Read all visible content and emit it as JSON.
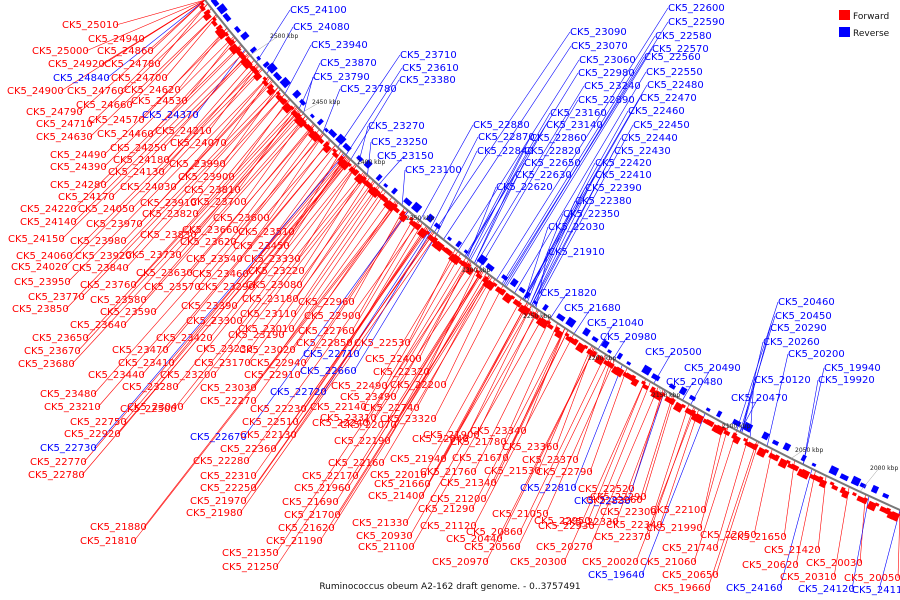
{
  "caption": "Ruminococcus obeum A2-162 draft genome. - 0..3757491",
  "legend": [
    {
      "label": "Forward",
      "color": "#ff0000"
    },
    {
      "label": "Reverse",
      "color": "#0000ff"
    }
  ],
  "ticks": [
    {
      "label": "2500 kbp"
    },
    {
      "label": "2450 kbp"
    },
    {
      "label": "2400 kbp"
    },
    {
      "label": "2350 kbp"
    },
    {
      "label": "2300 kbp"
    },
    {
      "label": "2250 kbp"
    },
    {
      "label": "2200 kbp"
    },
    {
      "label": "2150 kbp"
    },
    {
      "label": "2100 kbp"
    },
    {
      "label": "2050 kbp"
    },
    {
      "label": "2000 kbp"
    }
  ],
  "labels": [
    {
      "text": "CK5_25010",
      "s": "f"
    },
    {
      "text": "CK5_24940",
      "s": "f"
    },
    {
      "text": "CK5_25000",
      "s": "f"
    },
    {
      "text": "CK5_24860",
      "s": "f"
    },
    {
      "text": "CK5_24920",
      "s": "f"
    },
    {
      "text": "CK5_24780",
      "s": "f"
    },
    {
      "text": "CK5_24840",
      "s": "r"
    },
    {
      "text": "CK5_24700",
      "s": "f"
    },
    {
      "text": "CK5_24900",
      "s": "f"
    },
    {
      "text": "CK5_24760",
      "s": "f"
    },
    {
      "text": "CK5_24620",
      "s": "f"
    },
    {
      "text": "CK5_24660",
      "s": "f"
    },
    {
      "text": "CK5_24530",
      "s": "f"
    },
    {
      "text": "CK5_24790",
      "s": "f"
    },
    {
      "text": "CK5_24370",
      "s": "r"
    },
    {
      "text": "CK5_24710",
      "s": "f"
    },
    {
      "text": "CK5_24570",
      "s": "f"
    },
    {
      "text": "CK5_24630",
      "s": "f"
    },
    {
      "text": "CK5_24460",
      "s": "f"
    },
    {
      "text": "CK5_24210",
      "s": "f"
    },
    {
      "text": "CK5_24070",
      "s": "f"
    },
    {
      "text": "CK5_24250",
      "s": "f"
    },
    {
      "text": "CK5_24490",
      "s": "f"
    },
    {
      "text": "CK5_24180",
      "s": "f"
    },
    {
      "text": "CK5_24390",
      "s": "f"
    },
    {
      "text": "CK5_24130",
      "s": "f"
    },
    {
      "text": "CK5_23990",
      "s": "f"
    },
    {
      "text": "CK5_23900",
      "s": "f"
    },
    {
      "text": "CK5_24280",
      "s": "f"
    },
    {
      "text": "CK5_24030",
      "s": "f"
    },
    {
      "text": "CK5_23810",
      "s": "f"
    },
    {
      "text": "CK5_24170",
      "s": "f"
    },
    {
      "text": "CK5_23700",
      "s": "f"
    },
    {
      "text": "CK5_24220",
      "s": "f"
    },
    {
      "text": "CK5_24050",
      "s": "f"
    },
    {
      "text": "CK5_23910",
      "s": "f"
    },
    {
      "text": "CK5_23820",
      "s": "f"
    },
    {
      "text": "CK5_24140",
      "s": "f"
    },
    {
      "text": "CK5_23970",
      "s": "f"
    },
    {
      "text": "CK5_23600",
      "s": "f"
    },
    {
      "text": "CK5_23830",
      "s": "f"
    },
    {
      "text": "CK5_23660",
      "s": "f"
    },
    {
      "text": "CK5_23510",
      "s": "f"
    },
    {
      "text": "CK5_24150",
      "s": "f"
    },
    {
      "text": "CK5_23980",
      "s": "f"
    },
    {
      "text": "CK5_23620",
      "s": "f"
    },
    {
      "text": "CK5_23450",
      "s": "f"
    },
    {
      "text": "CK5_24060",
      "s": "f"
    },
    {
      "text": "CK5_23920",
      "s": "f"
    },
    {
      "text": "CK5_23730",
      "s": "f"
    },
    {
      "text": "CK5_23540",
      "s": "f"
    },
    {
      "text": "CK5_23330",
      "s": "f"
    },
    {
      "text": "CK5_24020",
      "s": "f"
    },
    {
      "text": "CK5_23840",
      "s": "f"
    },
    {
      "text": "CK5_23460",
      "s": "f"
    },
    {
      "text": "CK5_23220",
      "s": "f"
    },
    {
      "text": "CK5_23630",
      "s": "f"
    },
    {
      "text": "CK5_23950",
      "s": "f"
    },
    {
      "text": "CK5_23760",
      "s": "f"
    },
    {
      "text": "CK5_23570",
      "s": "f"
    },
    {
      "text": "CK5_23290",
      "s": "f"
    },
    {
      "text": "CK5_23080",
      "s": "f"
    },
    {
      "text": "CK5_23770",
      "s": "f"
    },
    {
      "text": "CK5_23580",
      "s": "f"
    },
    {
      "text": "CK5_23180",
      "s": "f"
    },
    {
      "text": "CK5_22960",
      "s": "f"
    },
    {
      "text": "CK5_23850",
      "s": "f"
    },
    {
      "text": "CK5_23590",
      "s": "f"
    },
    {
      "text": "CK5_23390",
      "s": "f"
    },
    {
      "text": "CK5_23110",
      "s": "f"
    },
    {
      "text": "CK5_22900",
      "s": "f"
    },
    {
      "text": "CK5_23300",
      "s": "f"
    },
    {
      "text": "CK5_23640",
      "s": "f"
    },
    {
      "text": "CK5_23010",
      "s": "f"
    },
    {
      "text": "CK5_22760",
      "s": "f"
    },
    {
      "text": "CK5_23650",
      "s": "f"
    },
    {
      "text": "CK5_23420",
      "s": "f"
    },
    {
      "text": "CK5_23190",
      "s": "f"
    },
    {
      "text": "CK5_22850",
      "s": "f"
    },
    {
      "text": "CK5_22530",
      "s": "f"
    },
    {
      "text": "CK5_23470",
      "s": "f"
    },
    {
      "text": "CK5_23230",
      "s": "f"
    },
    {
      "text": "CK5_23020",
      "s": "f"
    },
    {
      "text": "CK5_23670",
      "s": "f"
    },
    {
      "text": "CK5_22710",
      "s": "r"
    },
    {
      "text": "CK5_22400",
      "s": "f"
    },
    {
      "text": "CK5_23680",
      "s": "f"
    },
    {
      "text": "CK5_23410",
      "s": "f"
    },
    {
      "text": "CK5_23170",
      "s": "f"
    },
    {
      "text": "CK5_22940",
      "s": "f"
    },
    {
      "text": "CK5_22660",
      "s": "r"
    },
    {
      "text": "CK5_22320",
      "s": "f"
    },
    {
      "text": "CK5_23440",
      "s": "f"
    },
    {
      "text": "CK5_23200",
      "s": "f"
    },
    {
      "text": "CK5_22910",
      "s": "f"
    },
    {
      "text": "CK5_22490",
      "s": "f"
    },
    {
      "text": "CK5_22200",
      "s": "f"
    },
    {
      "text": "CK5_23280",
      "s": "f"
    },
    {
      "text": "CK5_23030",
      "s": "f"
    },
    {
      "text": "CK5_22720",
      "s": "r"
    },
    {
      "text": "CK5_23480",
      "s": "f"
    },
    {
      "text": "CK5_23040",
      "s": "f"
    },
    {
      "text": "CK5_22270",
      "s": "f"
    },
    {
      "text": "CK5_23490",
      "s": "f"
    },
    {
      "text": "CK5_23210",
      "s": "f"
    },
    {
      "text": "CK5_22500",
      "s": "f"
    },
    {
      "text": "CK5_22140",
      "s": "f"
    },
    {
      "text": "CK5_22740",
      "s": "f"
    },
    {
      "text": "CK5_22230",
      "s": "f"
    },
    {
      "text": "CK5_23310",
      "s": "f"
    },
    {
      "text": "CK5_22750",
      "s": "f"
    },
    {
      "text": "CK5_22510",
      "s": "f"
    },
    {
      "text": "CK5_22240",
      "s": "f"
    },
    {
      "text": "CK5_22070",
      "s": "f"
    },
    {
      "text": "CK5_23320",
      "s": "f"
    },
    {
      "text": "CK5_22920",
      "s": "f"
    },
    {
      "text": "CK5_22670",
      "s": "r"
    },
    {
      "text": "CK5_22130",
      "s": "f"
    },
    {
      "text": "CK5_21900",
      "s": "f"
    },
    {
      "text": "CK5_23340",
      "s": "f"
    },
    {
      "text": "CK5_22730",
      "s": "r"
    },
    {
      "text": "CK5_22360",
      "s": "f"
    },
    {
      "text": "CK5_22190",
      "s": "f"
    },
    {
      "text": "CK5_22040",
      "s": "f"
    },
    {
      "text": "CK5_21780",
      "s": "f"
    },
    {
      "text": "CK5_23360",
      "s": "f"
    },
    {
      "text": "CK5_22770",
      "s": "f"
    },
    {
      "text": "CK5_22280",
      "s": "f"
    },
    {
      "text": "CK5_22160",
      "s": "f"
    },
    {
      "text": "CK5_21940",
      "s": "f"
    },
    {
      "text": "CK5_21670",
      "s": "f"
    },
    {
      "text": "CK5_23370",
      "s": "f"
    },
    {
      "text": "CK5_22780",
      "s": "f"
    },
    {
      "text": "CK5_22310",
      "s": "f"
    },
    {
      "text": "CK5_22170",
      "s": "f"
    },
    {
      "text": "CK5_22010",
      "s": "f"
    },
    {
      "text": "CK5_21760",
      "s": "f"
    },
    {
      "text": "CK5_21530",
      "s": "f"
    },
    {
      "text": "CK5_22790",
      "s": "f"
    },
    {
      "text": "CK5_22520",
      "s": "f"
    },
    {
      "text": "CK5_22250",
      "s": "f"
    },
    {
      "text": "CK5_21960",
      "s": "f"
    },
    {
      "text": "CK5_21660",
      "s": "f"
    },
    {
      "text": "CK5_21340",
      "s": "f"
    },
    {
      "text": "CK5_22810",
      "s": "r"
    },
    {
      "text": "CK5_22260",
      "s": "f"
    },
    {
      "text": "CK5_21970",
      "s": "f"
    },
    {
      "text": "CK5_21690",
      "s": "f"
    },
    {
      "text": "CK5_21400",
      "s": "f"
    },
    {
      "text": "CK5_21200",
      "s": "f"
    },
    {
      "text": "CK5_22830",
      "s": "r"
    },
    {
      "text": "CK5_22290",
      "s": "f"
    },
    {
      "text": "CK5_21980",
      "s": "f"
    },
    {
      "text": "CK5_21700",
      "s": "f"
    },
    {
      "text": "CK5_21290",
      "s": "f"
    },
    {
      "text": "CK5_21050",
      "s": "f"
    },
    {
      "text": "CK5_22930",
      "s": "f"
    },
    {
      "text": "CK5_22300",
      "s": "f"
    },
    {
      "text": "CK5_22100",
      "s": "f"
    },
    {
      "text": "CK5_21880",
      "s": "f"
    },
    {
      "text": "CK5_21620",
      "s": "f"
    },
    {
      "text": "CK5_21330",
      "s": "f"
    },
    {
      "text": "CK5_21120",
      "s": "f"
    },
    {
      "text": "CK5_20860",
      "s": "f"
    },
    {
      "text": "CK5_22950",
      "s": "f"
    },
    {
      "text": "CK5_22330",
      "s": "f"
    },
    {
      "text": "CK5_22050",
      "s": "f"
    },
    {
      "text": "CK5_21810",
      "s": "f"
    },
    {
      "text": "CK5_21190",
      "s": "f"
    },
    {
      "text": "CK5_20930",
      "s": "f"
    },
    {
      "text": "CK5_20440",
      "s": "f"
    },
    {
      "text": "CK5_22340",
      "s": "f"
    },
    {
      "text": "CK5_21990",
      "s": "f"
    },
    {
      "text": "CK5_21650",
      "s": "f"
    },
    {
      "text": "CK5_21350",
      "s": "f"
    },
    {
      "text": "CK5_21100",
      "s": "f"
    },
    {
      "text": "CK5_20560",
      "s": "f"
    },
    {
      "text": "CK5_20270",
      "s": "f"
    },
    {
      "text": "CK5_22370",
      "s": "f"
    },
    {
      "text": "CK5_21740",
      "s": "f"
    },
    {
      "text": "CK5_21420",
      "s": "f"
    },
    {
      "text": "CK5_21250",
      "s": "f"
    },
    {
      "text": "CK5_20970",
      "s": "f"
    },
    {
      "text": "CK5_20300",
      "s": "f"
    },
    {
      "text": "CK5_20020",
      "s": "f"
    },
    {
      "text": "CK5_21060",
      "s": "f"
    },
    {
      "text": "CK5_20620",
      "s": "f"
    },
    {
      "text": "CK5_20030",
      "s": "f"
    },
    {
      "text": "CK5_19640",
      "s": "r"
    },
    {
      "text": "CK5_20650",
      "s": "f"
    },
    {
      "text": "CK5_20310",
      "s": "f"
    },
    {
      "text": "CK5_20050",
      "s": "f"
    },
    {
      "text": "CK5_19660",
      "s": "f"
    },
    {
      "text": "CK5_24160",
      "s": "r"
    },
    {
      "text": "CK5_24120",
      "s": "r"
    },
    {
      "text": "CK5_24110",
      "s": "r"
    },
    {
      "text": "CK5_24100",
      "s": "r"
    },
    {
      "text": "CK5_24080",
      "s": "r"
    },
    {
      "text": "CK5_23940",
      "s": "r"
    },
    {
      "text": "CK5_23870",
      "s": "r"
    },
    {
      "text": "CK5_23790",
      "s": "r"
    },
    {
      "text": "CK5_23780",
      "s": "r"
    },
    {
      "text": "CK5_23710",
      "s": "r"
    },
    {
      "text": "CK5_23610",
      "s": "r"
    },
    {
      "text": "CK5_23380",
      "s": "r"
    },
    {
      "text": "CK5_23270",
      "s": "r"
    },
    {
      "text": "CK5_23250",
      "s": "r"
    },
    {
      "text": "CK5_23150",
      "s": "r"
    },
    {
      "text": "CK5_23100",
      "s": "r"
    },
    {
      "text": "CK5_23090",
      "s": "r"
    },
    {
      "text": "CK5_23070",
      "s": "r"
    },
    {
      "text": "CK5_23060",
      "s": "r"
    },
    {
      "text": "CK5_22980",
      "s": "r"
    },
    {
      "text": "CK5_23240",
      "s": "r"
    },
    {
      "text": "CK5_22890",
      "s": "r"
    },
    {
      "text": "CK5_23160",
      "s": "r"
    },
    {
      "text": "CK5_22880",
      "s": "r"
    },
    {
      "text": "CK5_23140",
      "s": "r"
    },
    {
      "text": "CK5_22870",
      "s": "r"
    },
    {
      "text": "CK5_22860",
      "s": "r"
    },
    {
      "text": "CK5_22840",
      "s": "r"
    },
    {
      "text": "CK5_22820",
      "s": "r"
    },
    {
      "text": "CK5_22650",
      "s": "r"
    },
    {
      "text": "CK5_22630",
      "s": "r"
    },
    {
      "text": "CK5_22620",
      "s": "r"
    },
    {
      "text": "CK5_22600",
      "s": "r"
    },
    {
      "text": "CK5_22590",
      "s": "r"
    },
    {
      "text": "CK5_22580",
      "s": "r"
    },
    {
      "text": "CK5_22570",
      "s": "r"
    },
    {
      "text": "CK5_22560",
      "s": "r"
    },
    {
      "text": "CK5_22550",
      "s": "r"
    },
    {
      "text": "CK5_22480",
      "s": "r"
    },
    {
      "text": "CK5_22470",
      "s": "r"
    },
    {
      "text": "CK5_22460",
      "s": "r"
    },
    {
      "text": "CK5_22450",
      "s": "r"
    },
    {
      "text": "CK5_22440",
      "s": "r"
    },
    {
      "text": "CK5_22430",
      "s": "r"
    },
    {
      "text": "CK5_22420",
      "s": "r"
    },
    {
      "text": "CK5_22410",
      "s": "r"
    },
    {
      "text": "CK5_22390",
      "s": "r"
    },
    {
      "text": "CK5_22380",
      "s": "r"
    },
    {
      "text": "CK5_22350",
      "s": "r"
    },
    {
      "text": "CK5_22030",
      "s": "r"
    },
    {
      "text": "CK5_21910",
      "s": "r"
    },
    {
      "text": "CK5_21820",
      "s": "r"
    },
    {
      "text": "CK5_21680",
      "s": "r"
    },
    {
      "text": "CK5_21040",
      "s": "r"
    },
    {
      "text": "CK5_20980",
      "s": "r"
    },
    {
      "text": "CK5_20500",
      "s": "r"
    },
    {
      "text": "CK5_20490",
      "s": "r"
    },
    {
      "text": "CK5_20480",
      "s": "r"
    },
    {
      "text": "CK5_20470",
      "s": "r"
    },
    {
      "text": "CK5_20460",
      "s": "r"
    },
    {
      "text": "CK5_20450",
      "s": "r"
    },
    {
      "text": "CK5_20290",
      "s": "r"
    },
    {
      "text": "CK5_20260",
      "s": "r"
    },
    {
      "text": "CK5_20200",
      "s": "r"
    },
    {
      "text": "CK5_20120",
      "s": "r"
    },
    {
      "text": "CK5_19940",
      "s": "r"
    },
    {
      "text": "CK5_19920",
      "s": "r"
    }
  ]
}
